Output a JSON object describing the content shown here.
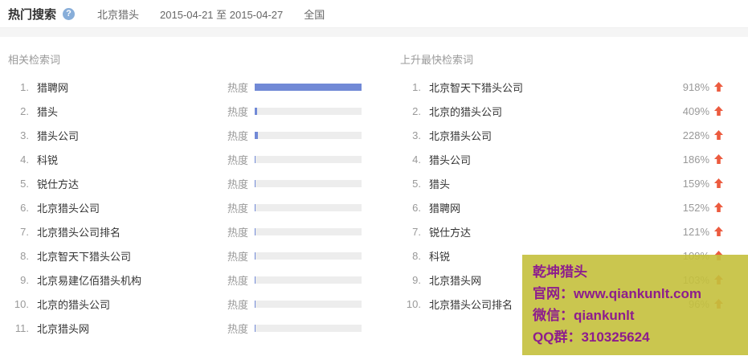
{
  "header": {
    "title": "热门搜索",
    "help": "?",
    "keyword": "北京猎头",
    "date_range": "2015-04-21 至 2015-04-27",
    "region": "全国"
  },
  "related": {
    "title": "相关检索词",
    "heat_label": "热度",
    "bar_color": "#7189d6",
    "track_color": "#ededed",
    "items": [
      {
        "rank": "1.",
        "keyword": "猎聘网",
        "heat_percent": 100
      },
      {
        "rank": "2.",
        "keyword": "猎头",
        "heat_percent": 2
      },
      {
        "rank": "3.",
        "keyword": "猎头公司",
        "heat_percent": 3
      },
      {
        "rank": "4.",
        "keyword": "科锐",
        "heat_percent": 1
      },
      {
        "rank": "5.",
        "keyword": "锐仕方达",
        "heat_percent": 1
      },
      {
        "rank": "6.",
        "keyword": "北京猎头公司",
        "heat_percent": 1
      },
      {
        "rank": "7.",
        "keyword": "北京猎头公司排名",
        "heat_percent": 1
      },
      {
        "rank": "8.",
        "keyword": "北京智天下猎头公司",
        "heat_percent": 1
      },
      {
        "rank": "9.",
        "keyword": "北京易建亿佰猎头机构",
        "heat_percent": 1
      },
      {
        "rank": "10.",
        "keyword": "北京的猎头公司",
        "heat_percent": 1
      },
      {
        "rank": "11.",
        "keyword": "北京猎头网",
        "heat_percent": 1
      }
    ]
  },
  "rising": {
    "title": "上升最快检索词",
    "arrow_color": "#ec5b3f",
    "items": [
      {
        "rank": "1.",
        "keyword": "北京智天下猎头公司",
        "change": "918%"
      },
      {
        "rank": "2.",
        "keyword": "北京的猎头公司",
        "change": "409%"
      },
      {
        "rank": "3.",
        "keyword": "北京猎头公司",
        "change": "228%"
      },
      {
        "rank": "4.",
        "keyword": "猎头公司",
        "change": "186%"
      },
      {
        "rank": "5.",
        "keyword": "猎头",
        "change": "159%"
      },
      {
        "rank": "6.",
        "keyword": "猎聘网",
        "change": "152%"
      },
      {
        "rank": "7.",
        "keyword": "锐仕方达",
        "change": "121%"
      },
      {
        "rank": "8.",
        "keyword": "科锐",
        "change": "109%"
      },
      {
        "rank": "9.",
        "keyword": "北京猎头网",
        "change": "103%"
      },
      {
        "rank": "10.",
        "keyword": "北京猎头公司排名",
        "change": "96%"
      }
    ]
  },
  "watermark": {
    "bg_color": "#c4c03c",
    "text_color": "#8d1d8d",
    "line1": "乾坤猎头",
    "line2": "官网：www.qiankunlt.com",
    "line3": "微信：qiankunlt",
    "line4": "QQ群：310325624"
  }
}
